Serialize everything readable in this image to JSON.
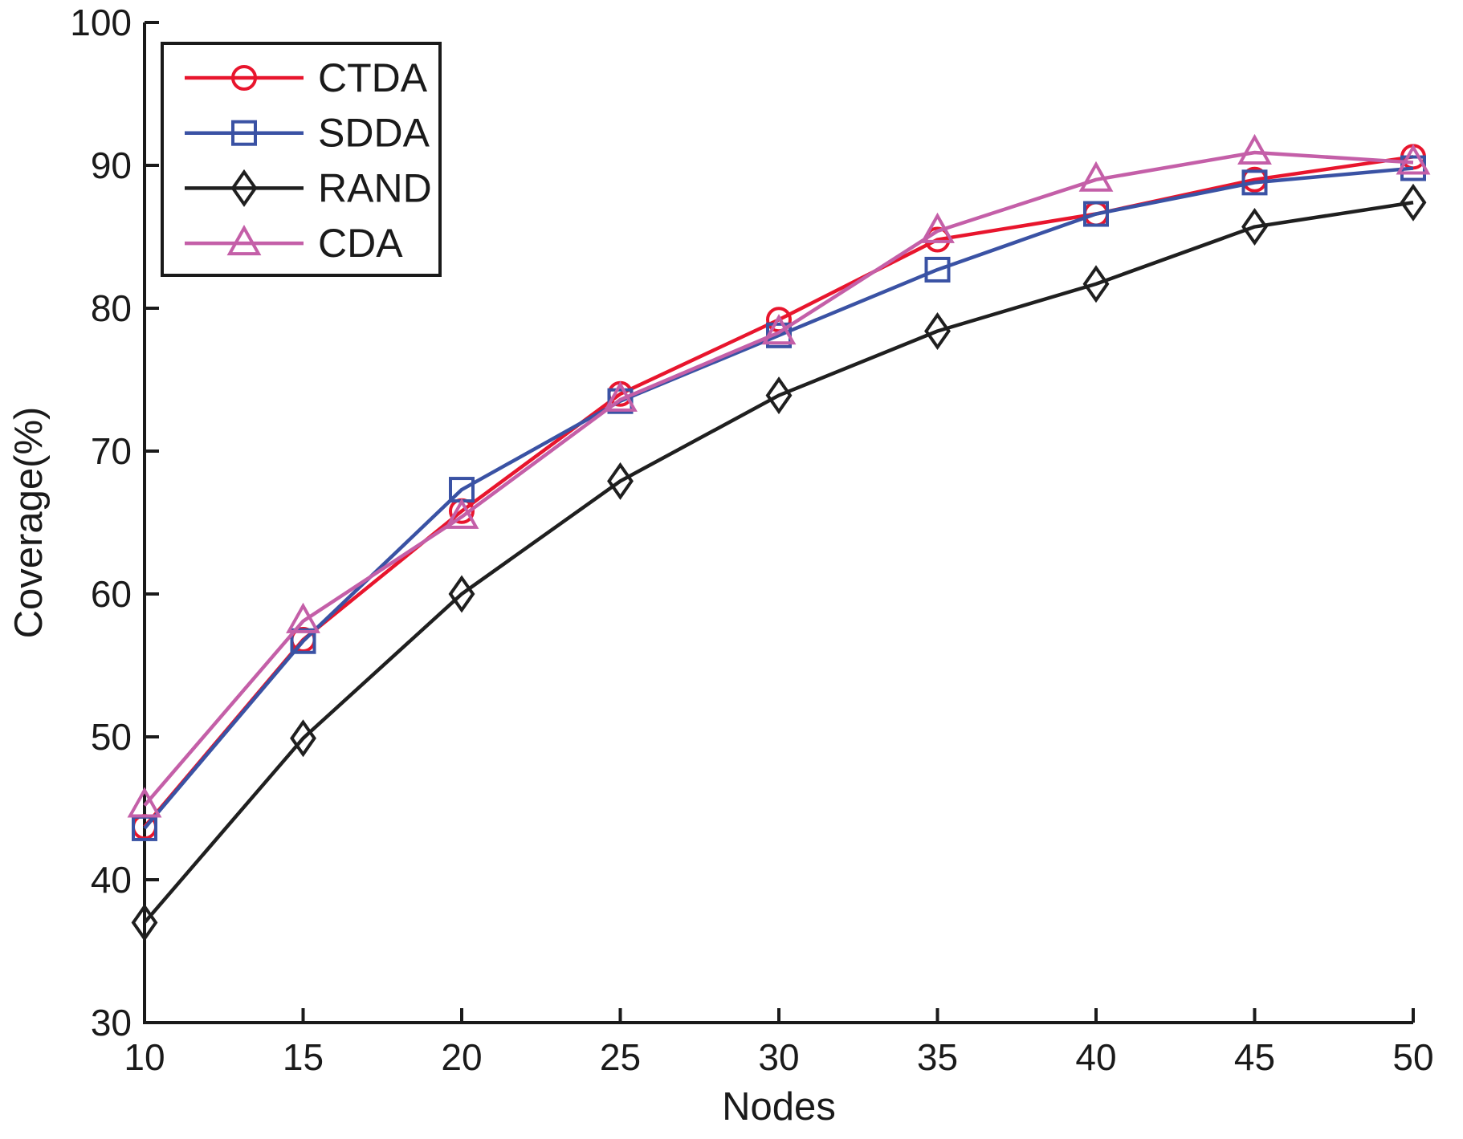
{
  "chart_data": {
    "type": "line",
    "title": "",
    "xlabel": "Nodes",
    "ylabel": "Coverage(%)",
    "xlim": [
      10,
      50
    ],
    "ylim": [
      30,
      100
    ],
    "xticks": [
      10,
      15,
      20,
      25,
      30,
      35,
      40,
      45,
      50
    ],
    "yticks": [
      30,
      40,
      50,
      60,
      70,
      80,
      90,
      100
    ],
    "grid": false,
    "legend_position": "top-left",
    "axis_color": "#1a1a1a",
    "background_color": "#ffffff",
    "x": [
      10,
      15,
      20,
      25,
      30,
      35,
      40,
      45,
      50
    ],
    "series": [
      {
        "name": "CTDA",
        "color": "#e8152d",
        "marker": "circle",
        "values": [
          43.7,
          56.8,
          65.8,
          74.0,
          79.2,
          84.8,
          86.6,
          89.0,
          90.6
        ]
      },
      {
        "name": "SDDA",
        "color": "#3a52a4",
        "marker": "square",
        "values": [
          43.6,
          56.7,
          67.3,
          73.5,
          78.1,
          82.7,
          86.6,
          88.8,
          89.8
        ]
      },
      {
        "name": "RAND",
        "color": "#1f1f1f",
        "marker": "diamond",
        "values": [
          37.0,
          49.9,
          60.0,
          67.9,
          73.9,
          78.4,
          81.7,
          85.7,
          87.4
        ]
      },
      {
        "name": "CDA",
        "color": "#c45fa8",
        "marker": "triangle",
        "values": [
          45.2,
          58.1,
          65.4,
          73.6,
          78.3,
          85.4,
          89.0,
          90.9,
          90.2
        ]
      }
    ]
  }
}
